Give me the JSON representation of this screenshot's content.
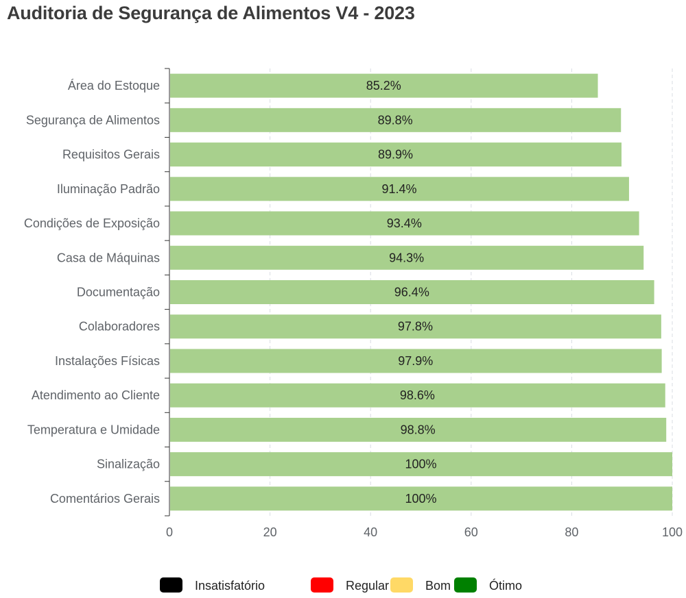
{
  "chart_data": {
    "type": "bar",
    "orientation": "horizontal",
    "title": "Auditoria de Segurança de Alimentos V4 - 2023",
    "xlabel": "",
    "ylabel": "",
    "xlim": [
      0,
      100
    ],
    "x_ticks": [
      0,
      20,
      40,
      60,
      80,
      100
    ],
    "grid": true,
    "legend_position": "bottom",
    "bar_color": "#a8d08d",
    "categories": [
      "Área do Estoque",
      "Segurança de Alimentos",
      "Requisitos Gerais",
      "Iluminação Padrão",
      "Condições de Exposição",
      "Casa de Máquinas",
      "Documentação",
      "Colaboradores",
      "Instalações Físicas",
      "Atendimento ao Cliente",
      "Temperatura e Umidade",
      "Sinalização",
      "Comentários Gerais"
    ],
    "values": [
      85.2,
      89.8,
      89.9,
      91.4,
      93.4,
      94.3,
      96.4,
      97.8,
      97.9,
      98.6,
      98.8,
      100,
      100
    ],
    "data_labels": [
      "85.2%",
      "89.8%",
      "89.9%",
      "91.4%",
      "93.4%",
      "94.3%",
      "96.4%",
      "97.8%",
      "97.9%",
      "98.6%",
      "98.8%",
      "100%",
      "100%"
    ],
    "legend": [
      {
        "label": "Insatisfatório",
        "color": "#000000"
      },
      {
        "label": "Regular",
        "color": "#ff0000"
      },
      {
        "label": "Bom",
        "color": "#ffd966"
      },
      {
        "label": "Ótimo",
        "color": "#008000"
      }
    ]
  }
}
